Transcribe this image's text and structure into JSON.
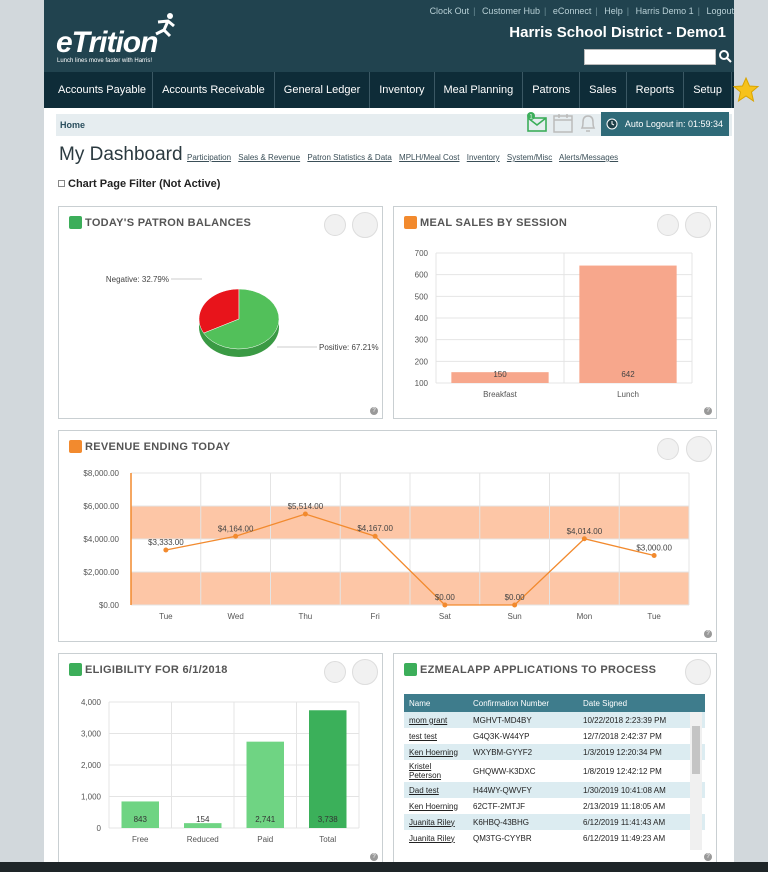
{
  "header": {
    "links": [
      "Clock Out",
      "Customer Hub",
      "eConnect",
      "Help",
      "Harris Demo 1",
      "Logout"
    ],
    "district": "Harris School District - Demo1",
    "logo_text": "eTrition",
    "logo_tagline": "Lunch lines move faster with Harris!",
    "search_placeholder": ""
  },
  "nav": {
    "items": [
      "Accounts Payable",
      "Accounts Receivable",
      "General Ledger",
      "Inventory",
      "Meal Planning",
      "Patrons",
      "Sales",
      "Reports",
      "Setup"
    ]
  },
  "breadcrumb": "Home",
  "notification_count": "1",
  "auto_logout": "Auto Logout in: 01:59:34",
  "dashboard": {
    "title": "My Dashboard",
    "links": [
      "Participation",
      "Sales & Revenue",
      "Patron Statistics & Data",
      "MPLH/Meal Cost",
      "Inventory",
      "System/Misc",
      "Alerts/Messages"
    ],
    "filter": "Chart Page Filter (Not Active)"
  },
  "panels": {
    "patron_balances": "TODAY'S PATRON BALANCES",
    "meal_sales": "MEAL SALES BY SESSION",
    "revenue": "REVENUE ENDING TODAY",
    "eligibility": "ELIGIBILITY FOR 6/1/2018",
    "ezmeal": "EZMEALAPP APPLICATIONS TO PROCESS"
  },
  "colors": {
    "header": "#21434f",
    "nav": "#0e2c38",
    "pie_negative": "#e8141b",
    "pie_positive": "#52c05a",
    "salmon": "#f7a78c",
    "orange": "#f28a2e",
    "green_light": "#6fd483",
    "green_dark": "#3bb05a"
  },
  "chart_data": [
    {
      "type": "pie",
      "labels": [
        "Negative",
        "Positive"
      ],
      "values": [
        32.79,
        67.21
      ],
      "label_text": [
        "Negative: 32.79%",
        "Positive: 67.21%"
      ]
    },
    {
      "type": "bar",
      "categories": [
        "Breakfast",
        "Lunch"
      ],
      "values": [
        150,
        642
      ],
      "value_labels": [
        "150",
        "642"
      ],
      "ylim": [
        100,
        700
      ],
      "yticks": [
        "100",
        "200",
        "300",
        "400",
        "500",
        "600",
        "700"
      ]
    },
    {
      "type": "line",
      "categories": [
        "Tue",
        "Wed",
        "Thu",
        "Fri",
        "Sat",
        "Sun",
        "Mon",
        "Tue"
      ],
      "values": [
        3333,
        4164,
        5514,
        4167,
        0,
        0,
        4014,
        3000
      ],
      "value_labels": [
        "$3,333.00",
        "$4,164.00",
        "$5,514.00",
        "$4,167.00",
        "$0.00",
        "$0.00",
        "$4,014.00",
        "$3,000.00"
      ],
      "ylim": [
        0,
        8000
      ],
      "yticks": [
        "$0.00",
        "$2,000.00",
        "$4,000.00",
        "$6,000.00",
        "$8,000.00"
      ],
      "bands": [
        [
          0,
          2000
        ],
        [
          4000,
          6000
        ]
      ]
    },
    {
      "type": "bar",
      "categories": [
        "Free",
        "Reduced",
        "Paid",
        "Total"
      ],
      "values": [
        843,
        154,
        2741,
        3738
      ],
      "value_labels": [
        "843",
        "154",
        "2,741",
        "3,738"
      ],
      "ylim": [
        0,
        4000
      ],
      "yticks": [
        "0",
        "1,000",
        "2,000",
        "3,000",
        "4,000"
      ]
    }
  ],
  "ezmeal_table": {
    "headers": [
      "Name",
      "Confirmation Number",
      "Date Signed"
    ],
    "rows": [
      [
        "mom grant",
        "MGHVT-MD4BY",
        "10/22/2018 2:23:39 PM"
      ],
      [
        "test test",
        "G4Q3K-W44YP",
        "12/7/2018 2:42:37 PM"
      ],
      [
        "Ken Hoerning",
        "WXYBM-GYYF2",
        "1/3/2019 12:20:34 PM"
      ],
      [
        "Kristel Peterson",
        "GHQWW-K3DXC",
        "1/8/2019 12:42:12 PM"
      ],
      [
        "Dad test",
        "H44WY-QWVFY",
        "1/30/2019 10:41:08 AM"
      ],
      [
        "Ken Hoerning",
        "62CTF-2MTJF",
        "2/13/2019 11:18:05 AM"
      ],
      [
        "Juanita Riley",
        "K6HBQ-43BHG",
        "6/12/2019 11:41:43 AM"
      ],
      [
        "Juanita Riley",
        "QM3TG-CYYBR",
        "6/12/2019 11:49:23 AM"
      ]
    ]
  }
}
